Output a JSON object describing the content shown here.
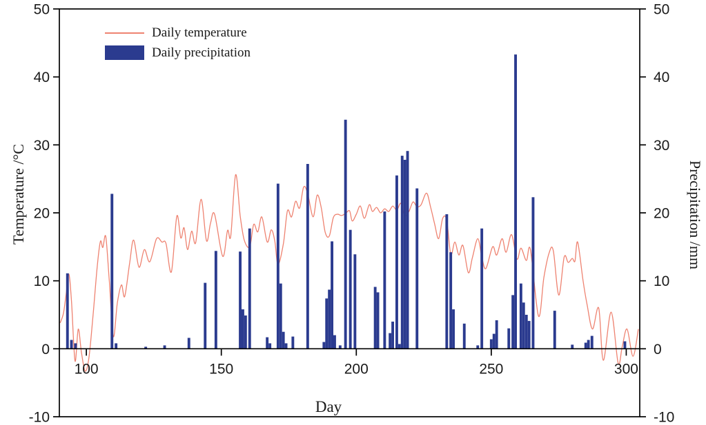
{
  "chart_data": {
    "type": "line+bar",
    "xlabel": "Day",
    "ylabel_left": "Temperature /°C",
    "ylabel_right": "Precipitation /mm",
    "x_range": [
      90,
      305
    ],
    "x_ticks": [
      100,
      150,
      200,
      250,
      300
    ],
    "y_left_range": [
      -10,
      50
    ],
    "y_left_ticks": [
      50,
      40,
      30,
      20,
      10,
      0,
      -10
    ],
    "y_right_range": [
      -10,
      50
    ],
    "y_right_ticks": [
      50,
      40,
      30,
      20,
      10,
      0,
      -10
    ],
    "grid": false,
    "legend_position": "top-left",
    "colors": {
      "temperature_line": "#ee8270",
      "precipitation_bar": "#2b3b8f",
      "axis": "#000000",
      "text": "#1a1a1a"
    },
    "legend": [
      {
        "label": "Daily temperature",
        "type": "line"
      },
      {
        "label": "Daily precipitation",
        "type": "bar"
      }
    ],
    "series": [
      {
        "name": "Daily temperature",
        "type": "line",
        "axis": "left",
        "unit": "°C",
        "points": [
          [
            90.3,
            3.8
          ],
          [
            91.5,
            5.2
          ],
          [
            92.5,
            8.0
          ],
          [
            93.5,
            11.0
          ],
          [
            94.5,
            7.0
          ],
          [
            95.8,
            -1.8
          ],
          [
            97.0,
            2.9
          ],
          [
            98.2,
            -0.6
          ],
          [
            99.6,
            -3.3
          ],
          [
            101.0,
            -1.2
          ],
          [
            102.5,
            5.0
          ],
          [
            104.0,
            12.0
          ],
          [
            105.2,
            15.8
          ],
          [
            106.1,
            14.9
          ],
          [
            107.2,
            16.5
          ],
          [
            108.5,
            10.0
          ],
          [
            110.0,
            1.8
          ],
          [
            111.5,
            6.8
          ],
          [
            113.0,
            9.4
          ],
          [
            114.2,
            7.7
          ],
          [
            116.0,
            12.5
          ],
          [
            117.5,
            16.0
          ],
          [
            119.5,
            12.0
          ],
          [
            121.5,
            14.6
          ],
          [
            123.5,
            12.8
          ],
          [
            126.0,
            16.2
          ],
          [
            128.0,
            15.7
          ],
          [
            129.5,
            15.5
          ],
          [
            131.5,
            11.3
          ],
          [
            133.5,
            19.5
          ],
          [
            135.0,
            16.3
          ],
          [
            136.2,
            17.8
          ],
          [
            137.5,
            14.6
          ],
          [
            139.0,
            17.3
          ],
          [
            140.5,
            15.6
          ],
          [
            142.5,
            22.0
          ],
          [
            144.5,
            15.9
          ],
          [
            146.0,
            18.5
          ],
          [
            147.5,
            19.8
          ],
          [
            150.5,
            13.6
          ],
          [
            152.3,
            17.4
          ],
          [
            153.5,
            16.6
          ],
          [
            155.3,
            25.6
          ],
          [
            157.0,
            19.5
          ],
          [
            158.5,
            16.0
          ],
          [
            160.5,
            15.0
          ],
          [
            162.0,
            18.3
          ],
          [
            163.5,
            17.2
          ],
          [
            165.0,
            19.4
          ],
          [
            167.0,
            15.7
          ],
          [
            168.5,
            17.5
          ],
          [
            169.8,
            15.9
          ],
          [
            171.0,
            12.4
          ],
          [
            173.0,
            15.5
          ],
          [
            174.5,
            20.3
          ],
          [
            176.0,
            19.4
          ],
          [
            177.5,
            21.7
          ],
          [
            179.0,
            20.7
          ],
          [
            180.5,
            23.8
          ],
          [
            182.0,
            22.8
          ],
          [
            184.0,
            19.4
          ],
          [
            185.5,
            22.6
          ],
          [
            187.0,
            20.8
          ],
          [
            188.5,
            17.1
          ],
          [
            190.0,
            16.6
          ],
          [
            191.5,
            19.3
          ],
          [
            193.0,
            19.8
          ],
          [
            194.5,
            19.6
          ],
          [
            196.0,
            19.9
          ],
          [
            197.5,
            20.3
          ],
          [
            198.5,
            18.8
          ],
          [
            200.0,
            19.8
          ],
          [
            201.5,
            21.0
          ],
          [
            203.0,
            19.2
          ],
          [
            204.8,
            21.2
          ],
          [
            206.0,
            20.2
          ],
          [
            207.5,
            20.8
          ],
          [
            209.0,
            20.0
          ],
          [
            210.5,
            20.6
          ],
          [
            212.0,
            20.2
          ],
          [
            213.5,
            21.0
          ],
          [
            215.0,
            20.4
          ],
          [
            216.5,
            21.4
          ],
          [
            218.0,
            19.6
          ],
          [
            219.5,
            20.2
          ],
          [
            221.0,
            21.6
          ],
          [
            222.5,
            20.9
          ],
          [
            224.0,
            21.2
          ],
          [
            226.0,
            22.9
          ],
          [
            227.5,
            20.9
          ],
          [
            229.0,
            18.4
          ],
          [
            230.5,
            16.2
          ],
          [
            232.0,
            19.2
          ],
          [
            233.5,
            18.9
          ],
          [
            235.0,
            13.9
          ],
          [
            236.5,
            15.7
          ],
          [
            238.0,
            13.8
          ],
          [
            239.5,
            15.2
          ],
          [
            241.5,
            11.2
          ],
          [
            243.0,
            13.4
          ],
          [
            245.0,
            16.2
          ],
          [
            246.5,
            13.5
          ],
          [
            248.0,
            11.8
          ],
          [
            250.5,
            15.0
          ],
          [
            252.0,
            13.8
          ],
          [
            254.0,
            16.2
          ],
          [
            255.5,
            14.2
          ],
          [
            257.5,
            16.8
          ],
          [
            259.5,
            13.2
          ],
          [
            261.0,
            14.8
          ],
          [
            263.0,
            13.0
          ],
          [
            264.5,
            14.6
          ],
          [
            267.5,
            4.8
          ],
          [
            269.5,
            10.5
          ],
          [
            271.5,
            14.2
          ],
          [
            273.0,
            14.4
          ],
          [
            275.0,
            7.9
          ],
          [
            277.0,
            13.5
          ],
          [
            278.5,
            12.7
          ],
          [
            280.0,
            13.3
          ],
          [
            281.0,
            12.9
          ],
          [
            282.0,
            15.7
          ],
          [
            284.0,
            10.0
          ],
          [
            285.5,
            6.5
          ],
          [
            287.5,
            2.9
          ],
          [
            289.8,
            6.0
          ],
          [
            291.5,
            -1.7
          ],
          [
            294.4,
            5.4
          ],
          [
            297.0,
            -2.1
          ],
          [
            298.5,
            0.3
          ],
          [
            300.3,
            2.9
          ],
          [
            302.5,
            -1.1
          ],
          [
            304.5,
            2.9
          ]
        ]
      },
      {
        "name": "Daily precipitation",
        "type": "bar",
        "axis": "right",
        "unit": "mm",
        "points": [
          [
            93,
            11.1
          ],
          [
            94.5,
            1.3
          ],
          [
            96,
            0.8
          ],
          [
            109.5,
            22.8
          ],
          [
            111,
            0.8
          ],
          [
            122,
            0.3
          ],
          [
            129,
            0.5
          ],
          [
            138,
            1.6
          ],
          [
            144,
            9.7
          ],
          [
            148,
            14.4
          ],
          [
            157,
            14.3
          ],
          [
            158,
            5.8
          ],
          [
            159,
            4.9
          ],
          [
            160.5,
            17.7
          ],
          [
            167,
            1.7
          ],
          [
            168,
            0.8
          ],
          [
            171,
            24.3
          ],
          [
            172,
            9.6
          ],
          [
            173,
            2.5
          ],
          [
            174,
            0.8
          ],
          [
            176.5,
            1.8
          ],
          [
            182,
            27.2
          ],
          [
            188,
            1.0
          ],
          [
            189,
            7.4
          ],
          [
            190,
            8.7
          ],
          [
            191,
            15.8
          ],
          [
            192,
            2.0
          ],
          [
            194,
            0.5
          ],
          [
            196,
            33.7
          ],
          [
            197.8,
            17.5
          ],
          [
            199.5,
            13.9
          ],
          [
            207,
            9.1
          ],
          [
            208,
            8.3
          ],
          [
            210.5,
            20.2
          ],
          [
            212.5,
            2.3
          ],
          [
            213.5,
            4.0
          ],
          [
            215,
            25.5
          ],
          [
            216,
            0.7
          ],
          [
            217,
            28.4
          ],
          [
            218,
            27.8
          ],
          [
            219,
            29.1
          ],
          [
            222.5,
            23.6
          ],
          [
            233.5,
            19.8
          ],
          [
            235,
            14.2
          ],
          [
            236,
            5.8
          ],
          [
            240,
            3.7
          ],
          [
            245,
            0.5
          ],
          [
            246.5,
            17.7
          ],
          [
            250,
            1.4
          ],
          [
            251,
            2.2
          ],
          [
            252,
            4.2
          ],
          [
            256.5,
            3.0
          ],
          [
            258,
            7.9
          ],
          [
            259,
            43.3
          ],
          [
            261,
            9.6
          ],
          [
            262,
            6.8
          ],
          [
            263,
            5.0
          ],
          [
            264,
            4.1
          ],
          [
            265.5,
            22.3
          ],
          [
            273.5,
            5.6
          ],
          [
            280,
            0.6
          ],
          [
            285,
            0.9
          ],
          [
            286,
            1.3
          ],
          [
            287.3,
            1.9
          ],
          [
            299.5,
            1.1
          ]
        ]
      }
    ]
  }
}
